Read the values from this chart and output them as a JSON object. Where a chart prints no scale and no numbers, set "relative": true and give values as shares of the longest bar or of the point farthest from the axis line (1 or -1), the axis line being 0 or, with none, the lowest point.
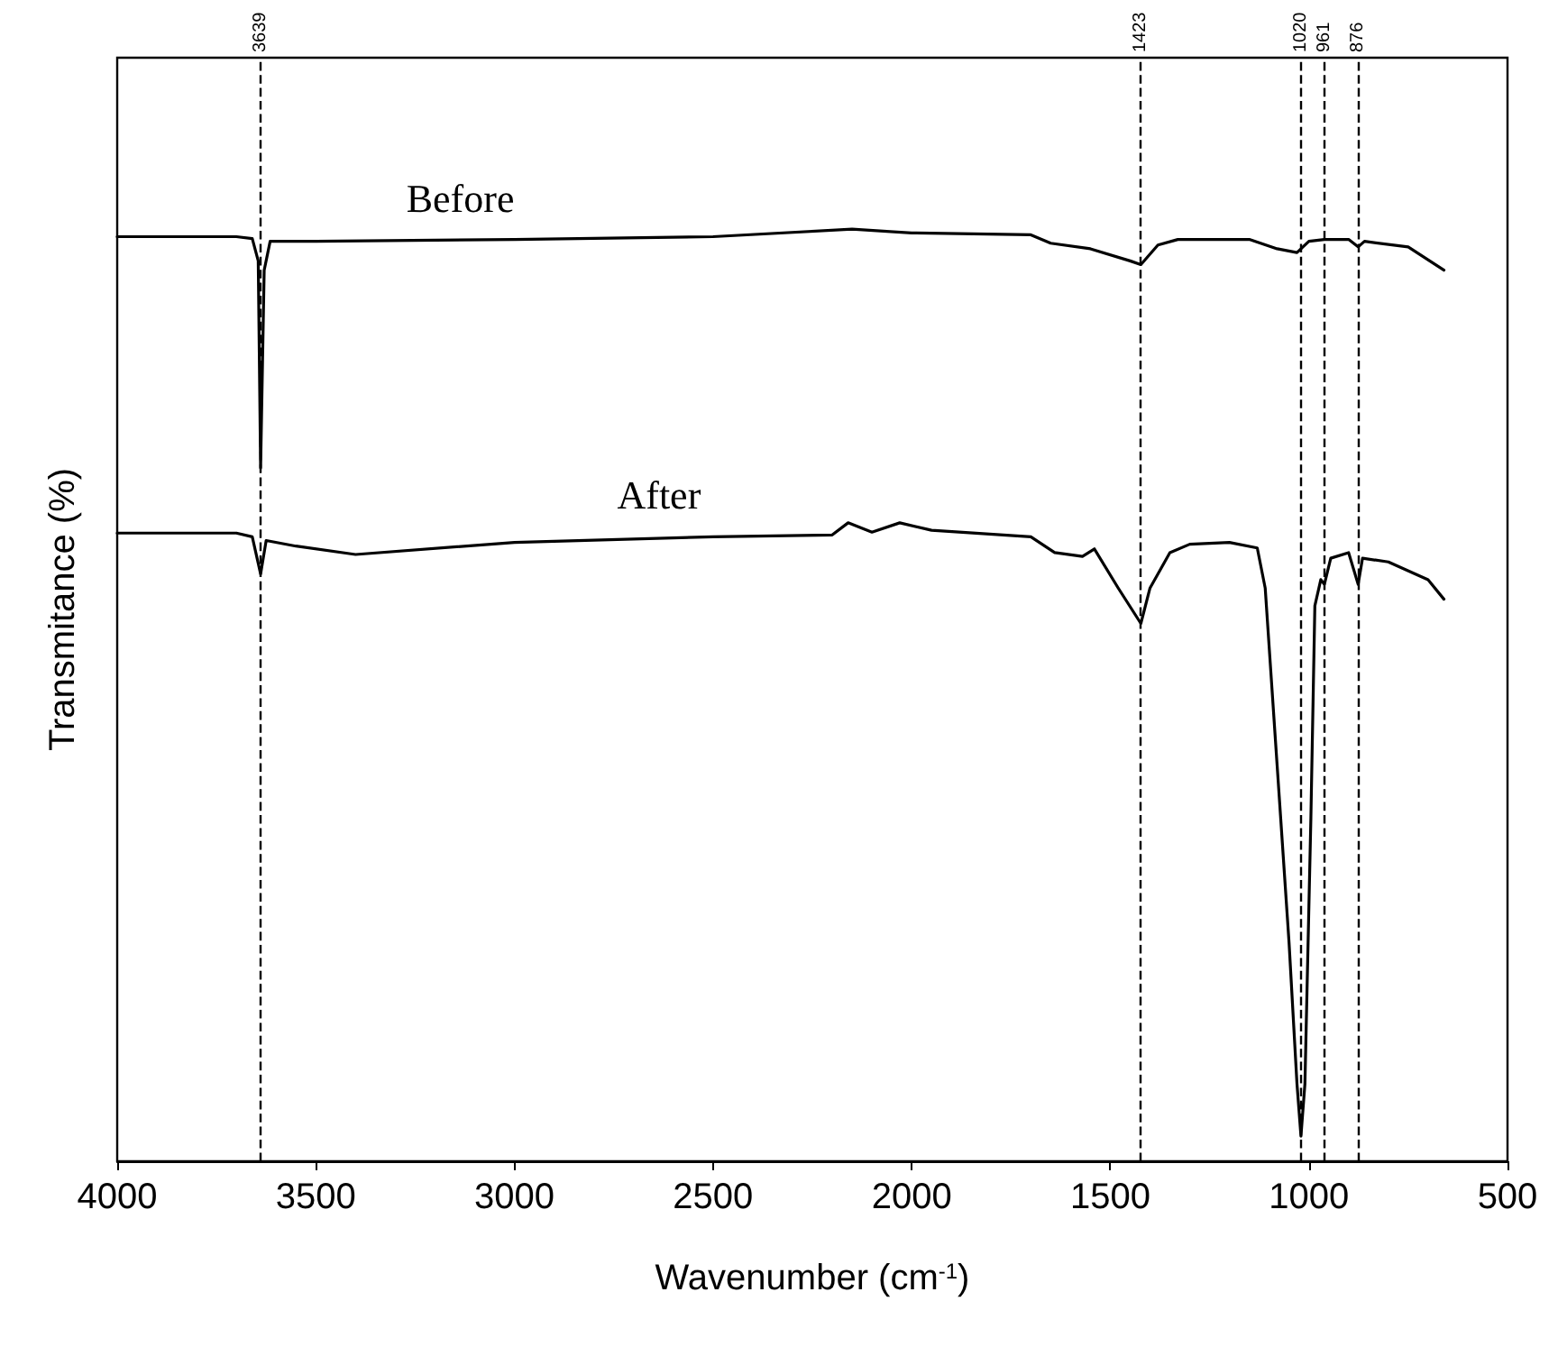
{
  "chart_data": {
    "type": "line",
    "relative": true,
    "xlabel": "Wavenumber (cm$^{-1}$)",
    "ylabel": "Transmitance (%)",
    "xlim": [
      4000,
      500
    ],
    "xticks": [
      4000,
      3500,
      3000,
      2500,
      2000,
      1500,
      1000,
      500
    ],
    "grid": false,
    "legend": false,
    "marker": "none",
    "line_style": "solid",
    "series": [
      {
        "name": "Before",
        "color": "#000000",
        "x": [
          4000,
          3700,
          3660,
          3645,
          3639,
          3630,
          3615,
          3500,
          3000,
          2500,
          2150,
          2000,
          1700,
          1650,
          1550,
          1450,
          1423,
          1380,
          1330,
          1150,
          1080,
          1030,
          1000,
          961,
          900,
          876,
          860,
          750,
          660
        ],
        "values": [
          0.992,
          0.992,
          0.99,
          0.966,
          0.744,
          0.956,
          0.987,
          0.987,
          0.989,
          0.992,
          1.0,
          0.996,
          0.994,
          0.985,
          0.979,
          0.966,
          0.962,
          0.983,
          0.989,
          0.989,
          0.979,
          0.975,
          0.987,
          0.989,
          0.989,
          0.981,
          0.987,
          0.981,
          0.956
        ]
      },
      {
        "name": "After",
        "color": "#000000",
        "x": [
          4000,
          3700,
          3660,
          3639,
          3625,
          3550,
          3400,
          3000,
          2500,
          2200,
          2160,
          2100,
          2030,
          1950,
          1700,
          1640,
          1570,
          1540,
          1480,
          1423,
          1400,
          1350,
          1300,
          1200,
          1130,
          1110,
          1080,
          1050,
          1030,
          1020,
          1010,
          995,
          985,
          970,
          961,
          945,
          900,
          876,
          865,
          800,
          700,
          660
        ],
        "values": [
          0.674,
          0.674,
          0.67,
          0.63,
          0.666,
          0.66,
          0.651,
          0.664,
          0.67,
          0.672,
          0.685,
          0.675,
          0.685,
          0.677,
          0.67,
          0.653,
          0.649,
          0.657,
          0.615,
          0.577,
          0.615,
          0.653,
          0.662,
          0.664,
          0.658,
          0.615,
          0.425,
          0.235,
          0.083,
          0.027,
          0.083,
          0.368,
          0.596,
          0.624,
          0.619,
          0.647,
          0.653,
          0.619,
          0.647,
          0.643,
          0.624,
          0.603
        ]
      }
    ],
    "ref_lines": [
      {
        "axis": "x",
        "value": 3639,
        "label": "3639",
        "line_style": "dashed"
      },
      {
        "axis": "x",
        "value": 1423,
        "label": "1423",
        "line_style": "dashed"
      },
      {
        "axis": "x",
        "value": 1020,
        "label": "1020",
        "line_style": "dashed"
      },
      {
        "axis": "x",
        "value": 961,
        "label": "961",
        "line_style": "dashed"
      },
      {
        "axis": "x",
        "value": 876,
        "label": "876",
        "line_style": "dashed"
      }
    ]
  }
}
